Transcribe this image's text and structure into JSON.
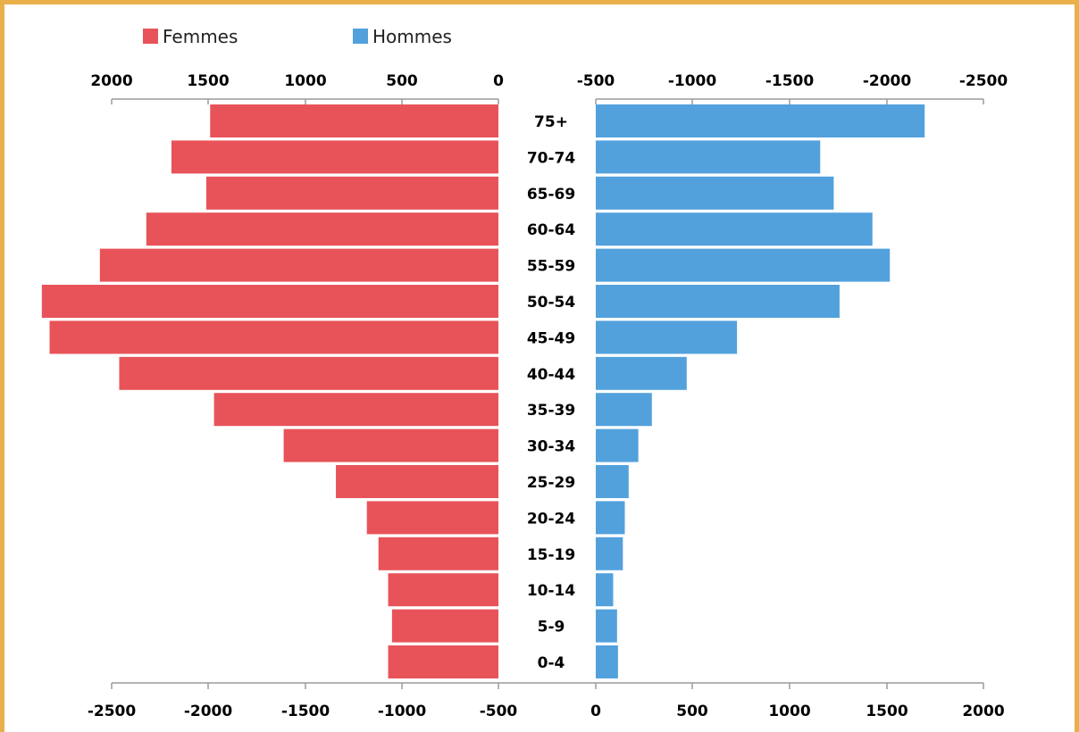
{
  "chart_data": {
    "type": "bar",
    "orientation": "horizontal-population-pyramid",
    "legend": [
      {
        "name": "Femmes",
        "color": "#e8535a"
      },
      {
        "name": "Hommes",
        "color": "#52a1dd"
      }
    ],
    "categories": [
      "75+",
      "70-74",
      "65-69",
      "60-64",
      "55-59",
      "50-54",
      "45-49",
      "40-44",
      "35-39",
      "30-34",
      "25-29",
      "20-24",
      "15-19",
      "10-14",
      "5-9",
      "0-4"
    ],
    "series": [
      {
        "name": "Femmes",
        "color": "#e8535a",
        "values": [
          1490,
          1690,
          1510,
          1820,
          2060,
          2360,
          2320,
          1960,
          1470,
          1110,
          840,
          680,
          620,
          570,
          550,
          570
        ]
      },
      {
        "name": "Hommes",
        "color": "#52a1dd",
        "values": [
          1700,
          1160,
          1230,
          1430,
          1520,
          1260,
          730,
          470,
          290,
          220,
          170,
          150,
          140,
          90,
          110,
          115
        ]
      }
    ],
    "top_axis": {
      "left_ticks": [
        "2000",
        "1500",
        "1000",
        "500",
        "0"
      ],
      "right_ticks": [
        "-500",
        "-1000",
        "-1500",
        "-2000",
        "-2500"
      ]
    },
    "bottom_axis": {
      "ticks": [
        "-2500",
        "-2000",
        "-1500",
        "-1000",
        "-500",
        "0",
        "500",
        "1000",
        "1500",
        "2000"
      ]
    },
    "xlim": [
      0,
      2000
    ],
    "grid": false,
    "legend_position": "top-left"
  },
  "frame_color": "#e9b04a"
}
